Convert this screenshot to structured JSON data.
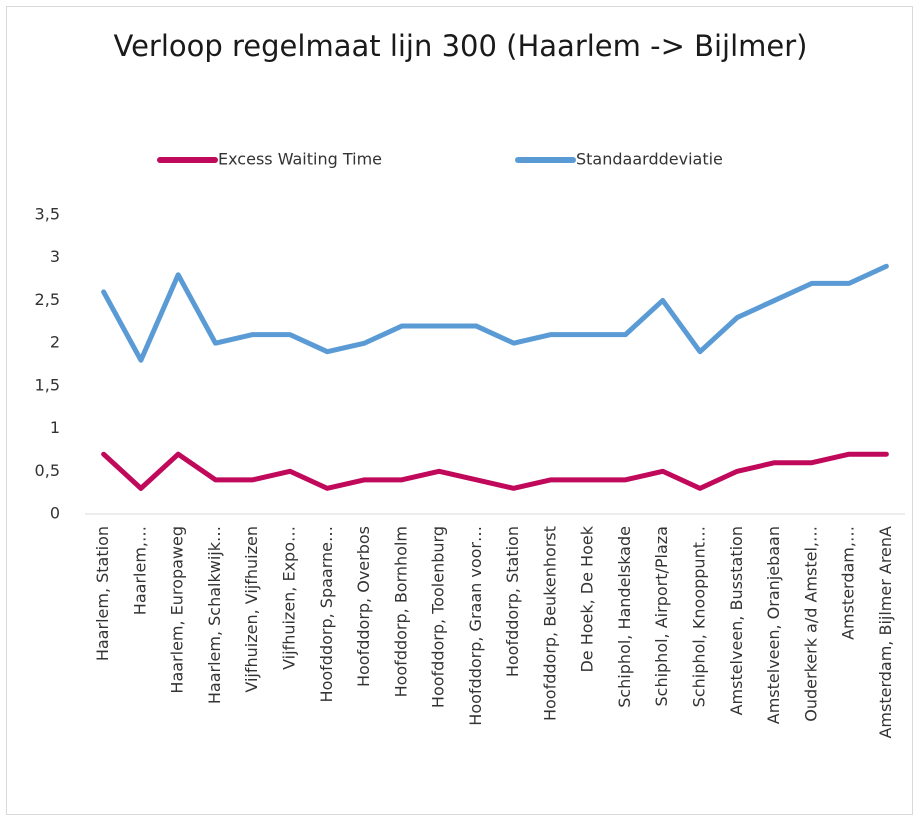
{
  "chart_data": {
    "type": "line",
    "title": "Verloop regelmaat lijn 300 (Haarlem -> Bijlmer)",
    "categories": [
      "Haarlem, Station",
      "Haarlem,…",
      "Haarlem, Europaweg",
      "Haarlem, Schalkwijk…",
      "Vijfhuizen, Vijfhuizen",
      "Vijfhuizen, Expo…",
      "Hoofddorp, Spaarne…",
      "Hoofddorp, Overbos",
      "Hoofddorp, Bornholm",
      "Hoofddorp, Toolenburg",
      "Hoofddorp, Graan voor…",
      "Hoofddorp, Station",
      "Hoofddorp, Beukenhorst",
      "De Hoek, De Hoek",
      "Schiphol, Handelskade",
      "Schiphol, Airport/Plaza",
      "Schiphol, Knooppunt…",
      "Amstelveen, Busstation",
      "Amstelveen, Oranjebaan",
      "Ouderkerk a/d Amstel,…",
      "Amsterdam,…",
      "Amsterdam, Bijlmer ArenA"
    ],
    "series": [
      {
        "name": "Excess Waiting Time",
        "color": "#c0095a",
        "values": [
          0.7,
          0.3,
          0.7,
          0.4,
          0.4,
          0.5,
          0.3,
          0.4,
          0.4,
          0.5,
          0.4,
          0.3,
          0.4,
          0.4,
          0.4,
          0.5,
          0.3,
          0.5,
          0.6,
          0.6,
          0.7,
          0.7
        ]
      },
      {
        "name": "Standaarddeviatie",
        "color": "#5b9bd5",
        "values": [
          2.6,
          1.8,
          2.8,
          2.0,
          2.1,
          2.1,
          1.9,
          2.0,
          2.2,
          2.2,
          2.2,
          2.0,
          2.1,
          2.1,
          2.1,
          2.5,
          1.9,
          2.3,
          2.5,
          2.7,
          2.7,
          2.9
        ]
      }
    ],
    "ylim": [
      0,
      3.5
    ],
    "yticks": [
      0,
      {
        "value": 0.5,
        "label": "0,5"
      },
      1,
      {
        "value": 1.5,
        "label": "1,5"
      },
      2,
      {
        "value": 2.5,
        "label": "2,5"
      },
      3,
      {
        "value": 3.5,
        "label": "3,5"
      }
    ],
    "legend": "top",
    "grid": false
  }
}
